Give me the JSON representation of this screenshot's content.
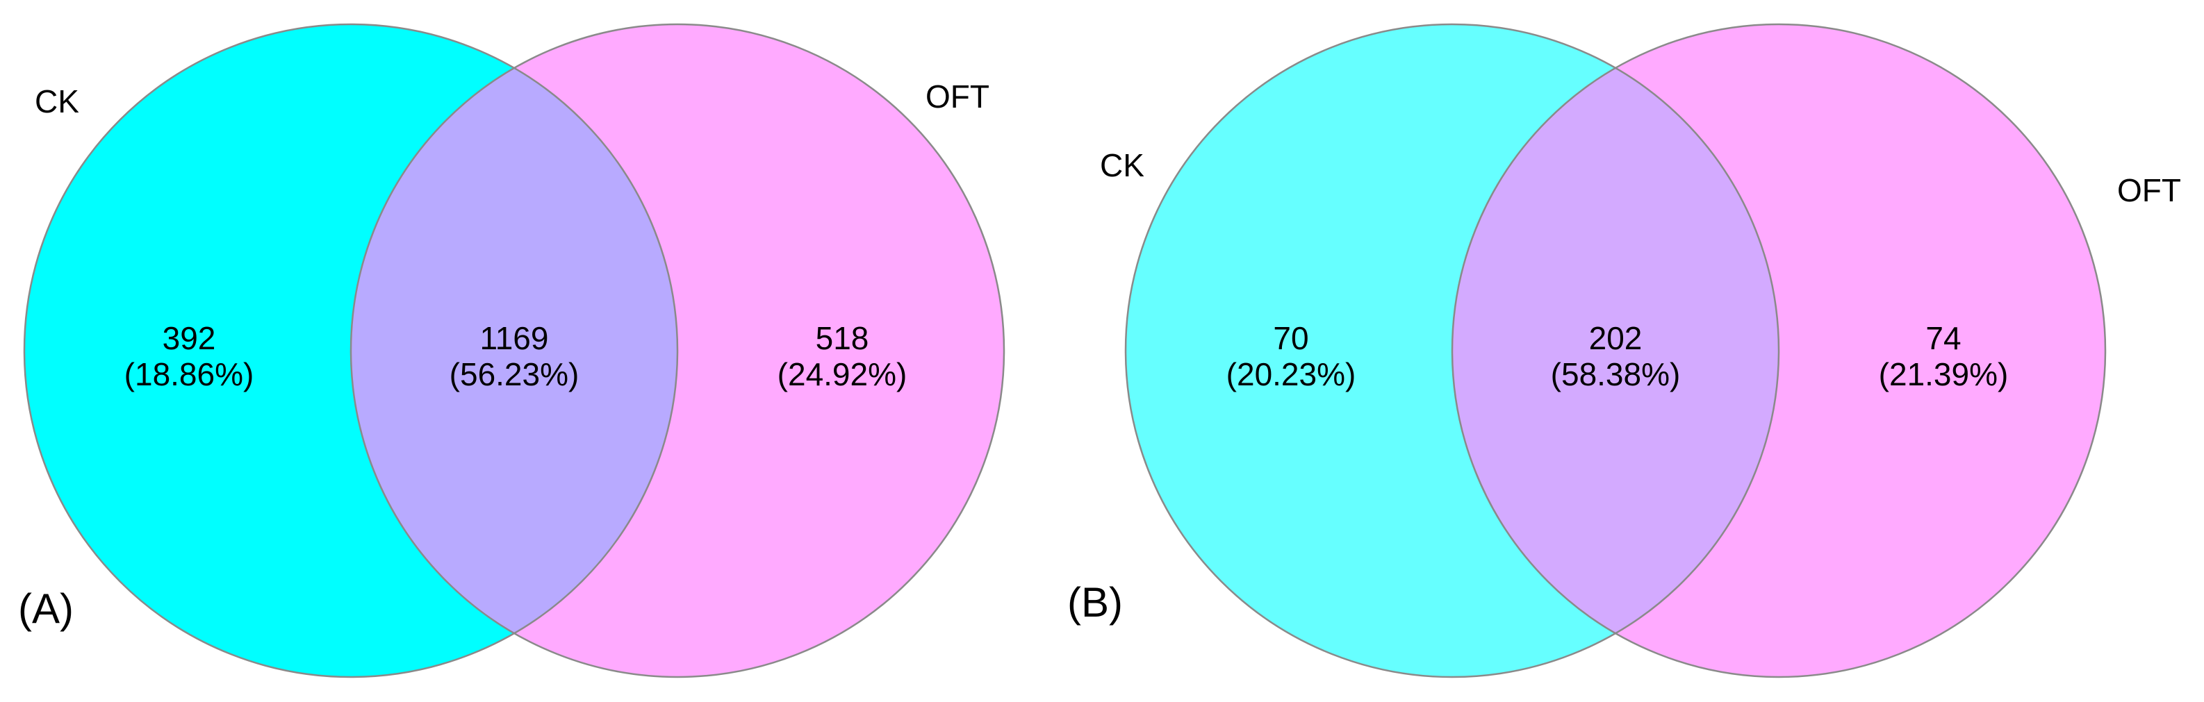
{
  "panels": [
    {
      "panel_label": "(A)",
      "left_set": {
        "name": "CK",
        "color": "#00FFFF"
      },
      "right_set": {
        "name": "OFT",
        "color": "#FFAAFF"
      },
      "overlap_color": "#B8AAFF",
      "regions": {
        "left_only": {
          "count": "392",
          "percent": "(18.86%)"
        },
        "both": {
          "count": "1169",
          "percent": "(56.23%)"
        },
        "right_only": {
          "count": "518",
          "percent": "(24.92%)"
        }
      }
    },
    {
      "panel_label": "(B)",
      "left_set": {
        "name": "CK",
        "color": "#66FFFF"
      },
      "right_set": {
        "name": "OFT",
        "color": "#FFAAFF"
      },
      "overlap_color": "#D3AAFF",
      "regions": {
        "left_only": {
          "count": "70",
          "percent": "(20.23%)"
        },
        "both": {
          "count": "202",
          "percent": "(58.38%)"
        },
        "right_only": {
          "count": "74",
          "percent": "(21.39%)"
        }
      }
    }
  ]
}
